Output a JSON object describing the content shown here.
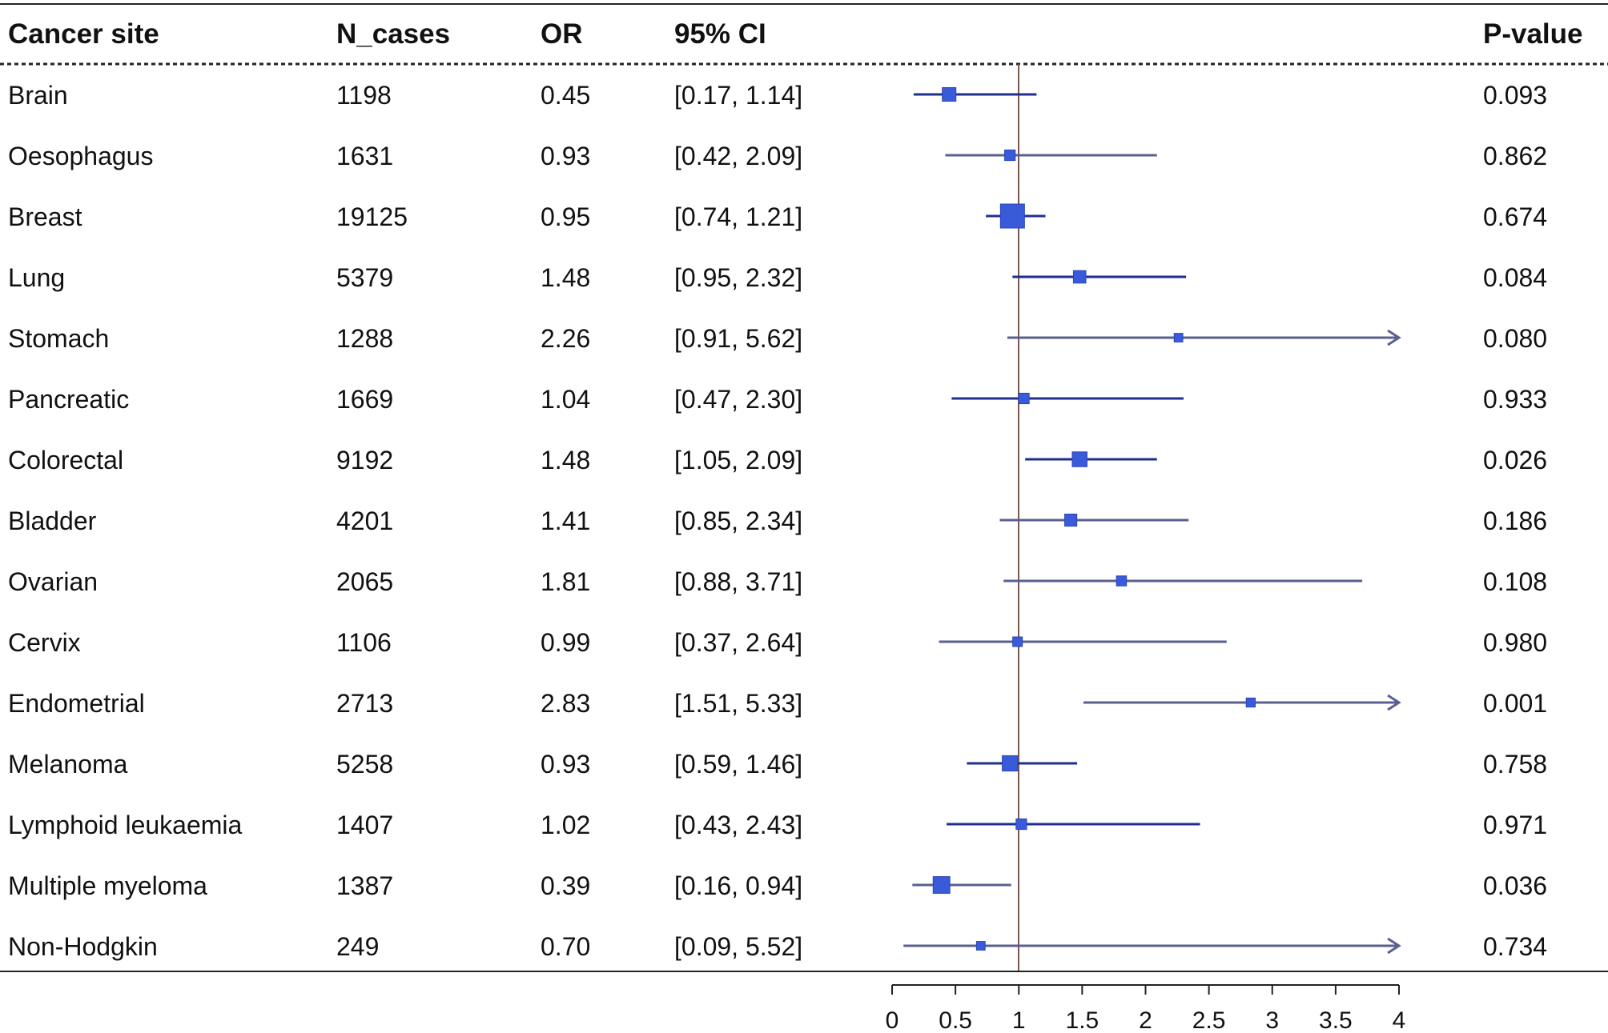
{
  "chart_data": {
    "type": "forest",
    "columns": {
      "site": "Cancer site",
      "n": "N_cases",
      "or": "OR",
      "ci": "95% CI",
      "p": "P-value"
    },
    "reference_line": 1,
    "xlim": [
      0,
      4
    ],
    "x_ticks": [
      "0",
      "0.5",
      "1",
      "1.5",
      "2",
      "2.5",
      "3",
      "3.5",
      "4"
    ],
    "colors": {
      "marker": "#3a5bd9",
      "ci_dark": "#1f2f8f",
      "ci_light": "#5b5f8f",
      "ref_line": "#7a5a50",
      "rule": "#222222"
    },
    "rows": [
      {
        "site": "Brain",
        "n": "1198",
        "or_label": "0.45",
        "ci_label": "[0.17, 1.14]",
        "p": "0.093",
        "or": 0.45,
        "lo": 0.17,
        "hi": 1.14,
        "weight": 0.46
      },
      {
        "site": "Oesophagus",
        "n": "1631",
        "or_label": "0.93",
        "ci_label": "[0.42, 2.09]",
        "p": "0.862",
        "or": 0.93,
        "lo": 0.42,
        "hi": 2.09,
        "weight": 0.3
      },
      {
        "site": "Breast",
        "n": "19125",
        "or_label": "0.95",
        "ci_label": "[0.74, 1.21]",
        "p": "0.674",
        "or": 0.95,
        "lo": 0.74,
        "hi": 1.21,
        "weight": 1.0
      },
      {
        "site": "Lung",
        "n": "5379",
        "or_label": "1.48",
        "ci_label": "[0.95, 2.32]",
        "p": "0.084",
        "or": 1.48,
        "lo": 0.95,
        "hi": 2.32,
        "weight": 0.4
      },
      {
        "site": "Stomach",
        "n": "1288",
        "or_label": "2.26",
        "ci_label": "[0.91, 5.62]",
        "p": "0.080",
        "or": 2.26,
        "lo": 0.91,
        "hi": 5.62,
        "weight": 0.2
      },
      {
        "site": "Pancreatic",
        "n": "1669",
        "or_label": "1.04",
        "ci_label": "[0.47, 2.30]",
        "p": "0.933",
        "or": 1.04,
        "lo": 0.47,
        "hi": 2.3,
        "weight": 0.3
      },
      {
        "site": "Colorectal",
        "n": "9192",
        "or_label": "1.48",
        "ci_label": "[1.05, 2.09]",
        "p": "0.026",
        "or": 1.48,
        "lo": 1.05,
        "hi": 2.09,
        "weight": 0.52
      },
      {
        "site": "Bladder",
        "n": "4201",
        "or_label": "1.41",
        "ci_label": "[0.85, 2.34]",
        "p": "0.186",
        "or": 1.41,
        "lo": 0.85,
        "hi": 2.34,
        "weight": 0.38
      },
      {
        "site": "Ovarian",
        "n": "2065",
        "or_label": "1.81",
        "ci_label": "[0.88, 3.71]",
        "p": "0.108",
        "or": 1.81,
        "lo": 0.88,
        "hi": 3.71,
        "weight": 0.27
      },
      {
        "site": "Cervix",
        "n": "1106",
        "or_label": "0.99",
        "ci_label": "[0.37, 2.64]",
        "p": "0.980",
        "or": 0.99,
        "lo": 0.37,
        "hi": 2.64,
        "weight": 0.25
      },
      {
        "site": "Endometrial",
        "n": "2713",
        "or_label": "2.83",
        "ci_label": "[1.51, 5.33]",
        "p": "0.001",
        "or": 2.83,
        "lo": 1.51,
        "hi": 5.33,
        "weight": 0.22
      },
      {
        "site": "Melanoma",
        "n": "5258",
        "or_label": "0.93",
        "ci_label": "[0.59, 1.46]",
        "p": "0.758",
        "or": 0.93,
        "lo": 0.59,
        "hi": 1.46,
        "weight": 0.55
      },
      {
        "site": "Lymphoid leukaemia",
        "n": "1407",
        "or_label": "1.02",
        "ci_label": "[0.43, 2.43]",
        "p": "0.971",
        "or": 1.02,
        "lo": 0.43,
        "hi": 2.43,
        "weight": 0.3
      },
      {
        "site": "Multiple myeloma",
        "n": "1387",
        "or_label": "0.39",
        "ci_label": "[0.16, 0.94]",
        "p": "0.036",
        "or": 0.39,
        "lo": 0.16,
        "hi": 0.94,
        "weight": 0.62
      },
      {
        "site": "Non-Hodgkin",
        "n": "249",
        "or_label": "0.70",
        "ci_label": "[0.09, 5.52]",
        "p": "0.734",
        "or": 0.7,
        "lo": 0.09,
        "hi": 5.52,
        "weight": 0.2
      }
    ]
  }
}
